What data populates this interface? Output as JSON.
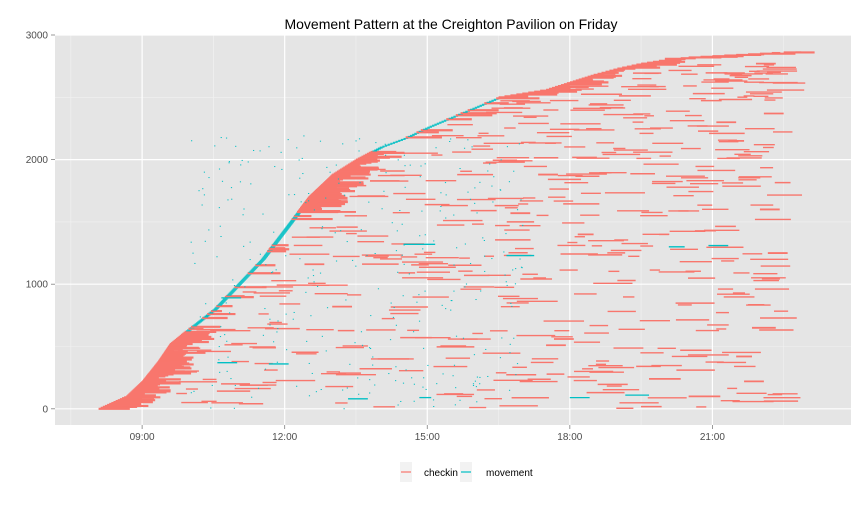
{
  "chart_data": {
    "type": "segments",
    "title": "Movement Pattern at the Creighton Pavilion on Friday",
    "xlabel": "",
    "ylabel": "",
    "x_range": [
      "07:10",
      "23:55"
    ],
    "y_range": [
      -130,
      3000
    ],
    "x_ticks": [
      "09:00",
      "12:00",
      "15:00",
      "18:00",
      "21:00"
    ],
    "y_ticks": [
      0,
      1000,
      2000,
      3000
    ],
    "grid": true,
    "legend_position": "bottom",
    "colors": {
      "checkin": "#F8766D",
      "movement": "#00BFC4",
      "panel": "#E5E5E5",
      "grid_major": "#FFFFFF",
      "grid_minor": "#F2F2F2"
    },
    "series": [
      {
        "name": "checkin",
        "color": "#F8766D"
      },
      {
        "name": "movement",
        "color": "#00BFC4"
      }
    ],
    "arrival_curve": [
      [
        "08:05",
        0
      ],
      [
        "08:40",
        100
      ],
      [
        "09:00",
        220
      ],
      [
        "09:20",
        380
      ],
      [
        "09:35",
        520
      ],
      [
        "10:00",
        650
      ],
      [
        "10:30",
        800
      ],
      [
        "11:00",
        1000
      ],
      [
        "11:30",
        1200
      ],
      [
        "12:00",
        1450
      ],
      [
        "12:30",
        1700
      ],
      [
        "13:00",
        1880
      ],
      [
        "13:30",
        2000
      ],
      [
        "14:00",
        2100
      ],
      [
        "14:30",
        2170
      ],
      [
        "15:00",
        2260
      ],
      [
        "15:30",
        2340
      ],
      [
        "16:00",
        2420
      ],
      [
        "16:30",
        2500
      ],
      [
        "17:00",
        2530
      ],
      [
        "17:30",
        2560
      ],
      [
        "18:00",
        2620
      ],
      [
        "18:30",
        2680
      ],
      [
        "19:00",
        2730
      ],
      [
        "19:30",
        2770
      ],
      [
        "20:00",
        2800
      ],
      [
        "20:30",
        2820
      ],
      [
        "21:00",
        2830
      ],
      [
        "21:30",
        2840
      ],
      [
        "22:00",
        2850
      ],
      [
        "22:30",
        2860
      ],
      [
        "23:00",
        2860
      ]
    ],
    "checkin_extra_segments": [
      [
        "21:05",
        "21:30",
        2300
      ],
      [
        "21:20",
        "21:40",
        2150
      ],
      [
        "22:00",
        "22:25",
        1600
      ],
      [
        "22:10",
        "22:35",
        1250
      ],
      [
        "21:50",
        "22:20",
        650
      ],
      [
        "21:30",
        "21:50",
        420
      ],
      [
        "21:40",
        "22:05",
        220
      ],
      [
        "20:30",
        "21:10",
        100
      ],
      [
        "19:40",
        "20:20",
        240
      ],
      [
        "17:30",
        "17:55",
        510
      ],
      [
        "17:40",
        "18:05",
        560
      ],
      [
        "18:10",
        "18:30",
        1400
      ],
      [
        "13:00",
        "13:25",
        820
      ],
      [
        "12:25",
        "12:50",
        1160
      ],
      [
        "13:05",
        "13:30",
        1580
      ],
      [
        "16:45",
        "17:10",
        1570
      ],
      [
        "17:20",
        "17:45",
        1880
      ],
      [
        "22:05",
        "22:30",
        2370
      ],
      [
        "20:00",
        "20:25",
        2810
      ],
      [
        "21:55",
        "22:20",
        2770
      ]
    ],
    "movement_extra_segments": [
      [
        "10:40",
        "11:05",
        890
      ],
      [
        "14:30",
        "15:10",
        1320
      ],
      [
        "16:40",
        "17:15",
        1230
      ],
      [
        "10:35",
        "11:00",
        370
      ],
      [
        "11:40",
        "12:05",
        360
      ],
      [
        "18:00",
        "18:25",
        90
      ],
      [
        "19:10",
        "19:40",
        110
      ],
      [
        "20:55",
        "21:20",
        1310
      ],
      [
        "20:05",
        "20:25",
        1300
      ],
      [
        "13:20",
        "13:45",
        80
      ],
      [
        "14:50",
        "15:05",
        90
      ]
    ]
  },
  "legend": {
    "items": [
      {
        "label": "checkin",
        "color": "#F8766D"
      },
      {
        "label": "movement",
        "color": "#00BFC4"
      }
    ]
  }
}
